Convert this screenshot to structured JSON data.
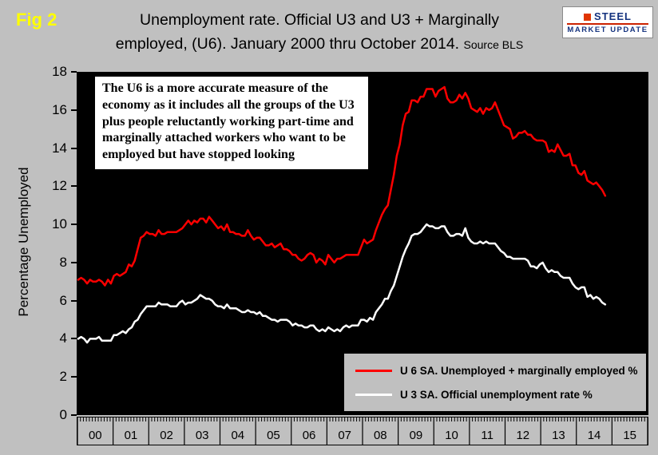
{
  "fig_label": "Fig 2",
  "title": {
    "line1": "Unemployment rate. Official U3 and U3 + Marginally",
    "line2": "employed, (U6). January 2000 thru October 2014.",
    "source": "Source BLS"
  },
  "logo": {
    "line1": "STEEL",
    "line2": "MARKET UPDATE"
  },
  "annotation": "The U6 is a more accurate measure of the economy as it includes all the groups of the U3 plus people reluctantly working part-time and marginally attached workers who want to be employed but have stopped looking",
  "chart_data": {
    "type": "line",
    "title": "Unemployment rate. Official U3 and U3 + Marginally employed, (U6). January 2000 thru October 2014.",
    "xlabel": "",
    "ylabel": "Percentage Unemployed",
    "ylim": [
      0,
      18
    ],
    "y_ticks": [
      0,
      2,
      4,
      6,
      8,
      10,
      12,
      14,
      16,
      18
    ],
    "x_start": "2000-01",
    "x_end_data": "2014-10",
    "axis_total_months": 192,
    "x_axis_years": [
      "00",
      "01",
      "02",
      "03",
      "04",
      "05",
      "06",
      "07",
      "08",
      "09",
      "10",
      "11",
      "12",
      "13",
      "14",
      "15"
    ],
    "grid": false,
    "plot_background": "#000000",
    "page_background": "#c0c0c0",
    "legend_position": "inside-bottom-right",
    "series": [
      {
        "id": "u6",
        "name": "U 6 SA. Unemployed + marginally employed %",
        "color": "#ff0000",
        "values": [
          7.1,
          7.2,
          7.1,
          6.9,
          7.1,
          7.0,
          7.0,
          7.1,
          7.0,
          6.8,
          7.1,
          6.9,
          7.3,
          7.4,
          7.3,
          7.4,
          7.5,
          7.9,
          7.8,
          8.1,
          8.7,
          9.3,
          9.4,
          9.6,
          9.5,
          9.5,
          9.4,
          9.7,
          9.5,
          9.5,
          9.6,
          9.6,
          9.6,
          9.6,
          9.7,
          9.8,
          10.0,
          10.2,
          10.0,
          10.2,
          10.1,
          10.3,
          10.3,
          10.1,
          10.4,
          10.2,
          10.0,
          9.8,
          9.9,
          9.7,
          10.0,
          9.6,
          9.6,
          9.5,
          9.5,
          9.4,
          9.4,
          9.7,
          9.4,
          9.2,
          9.3,
          9.3,
          9.1,
          8.9,
          8.9,
          9.0,
          8.8,
          8.9,
          9.0,
          8.7,
          8.7,
          8.6,
          8.4,
          8.4,
          8.2,
          8.1,
          8.2,
          8.4,
          8.5,
          8.4,
          8.0,
          8.2,
          8.1,
          7.9,
          8.4,
          8.2,
          8.0,
          8.2,
          8.2,
          8.3,
          8.4,
          8.4,
          8.4,
          8.4,
          8.4,
          8.8,
          9.2,
          9.0,
          9.1,
          9.2,
          9.7,
          10.1,
          10.5,
          10.8,
          11.0,
          11.8,
          12.6,
          13.6,
          14.2,
          15.2,
          15.8,
          15.9,
          16.5,
          16.5,
          16.4,
          16.7,
          16.7,
          17.1,
          17.1,
          17.1,
          16.7,
          17.0,
          17.1,
          17.2,
          16.6,
          16.4,
          16.4,
          16.5,
          16.8,
          16.6,
          16.9,
          16.6,
          16.1,
          16.0,
          15.9,
          16.1,
          15.8,
          16.1,
          16.0,
          16.1,
          16.4,
          16.0,
          15.6,
          15.2,
          15.1,
          15.0,
          14.5,
          14.6,
          14.8,
          14.8,
          14.9,
          14.7,
          14.7,
          14.5,
          14.4,
          14.4,
          14.4,
          14.3,
          13.8,
          13.9,
          13.8,
          14.2,
          13.9,
          13.6,
          13.6,
          13.7,
          13.1,
          13.1,
          12.7,
          12.6,
          12.8,
          12.3,
          12.2,
          12.1,
          12.2,
          12.0,
          11.8,
          11.5
        ]
      },
      {
        "id": "u3",
        "name": "U 3 SA. Official unemployment rate %",
        "color": "#ffffff",
        "values": [
          4.0,
          4.1,
          4.0,
          3.8,
          4.0,
          4.0,
          4.0,
          4.1,
          3.9,
          3.9,
          3.9,
          3.9,
          4.2,
          4.2,
          4.3,
          4.4,
          4.3,
          4.5,
          4.6,
          4.9,
          5.0,
          5.3,
          5.5,
          5.7,
          5.7,
          5.7,
          5.7,
          5.9,
          5.8,
          5.8,
          5.8,
          5.7,
          5.7,
          5.7,
          5.9,
          6.0,
          5.8,
          5.9,
          5.9,
          6.0,
          6.1,
          6.3,
          6.2,
          6.1,
          6.1,
          6.0,
          5.8,
          5.7,
          5.7,
          5.6,
          5.8,
          5.6,
          5.6,
          5.6,
          5.5,
          5.4,
          5.4,
          5.5,
          5.4,
          5.4,
          5.3,
          5.4,
          5.2,
          5.2,
          5.1,
          5.0,
          5.0,
          4.9,
          5.0,
          5.0,
          5.0,
          4.9,
          4.7,
          4.8,
          4.7,
          4.7,
          4.6,
          4.6,
          4.7,
          4.7,
          4.5,
          4.4,
          4.5,
          4.4,
          4.6,
          4.5,
          4.4,
          4.5,
          4.4,
          4.6,
          4.7,
          4.6,
          4.7,
          4.7,
          4.7,
          5.0,
          5.0,
          4.9,
          5.1,
          5.0,
          5.4,
          5.6,
          5.8,
          6.1,
          6.1,
          6.5,
          6.8,
          7.3,
          7.8,
          8.3,
          8.7,
          9.0,
          9.4,
          9.5,
          9.5,
          9.6,
          9.8,
          10.0,
          9.9,
          9.9,
          9.8,
          9.8,
          9.9,
          9.9,
          9.6,
          9.4,
          9.4,
          9.5,
          9.5,
          9.4,
          9.8,
          9.3,
          9.1,
          9.0,
          9.0,
          9.1,
          9.0,
          9.1,
          9.0,
          9.0,
          9.0,
          8.8,
          8.6,
          8.5,
          8.3,
          8.3,
          8.2,
          8.2,
          8.2,
          8.2,
          8.2,
          8.1,
          7.8,
          7.8,
          7.7,
          7.9,
          8.0,
          7.7,
          7.5,
          7.6,
          7.5,
          7.5,
          7.3,
          7.2,
          7.2,
          7.2,
          6.9,
          6.7,
          6.6,
          6.7,
          6.7,
          6.2,
          6.3,
          6.1,
          6.2,
          6.1,
          5.9,
          5.8
        ]
      }
    ]
  }
}
